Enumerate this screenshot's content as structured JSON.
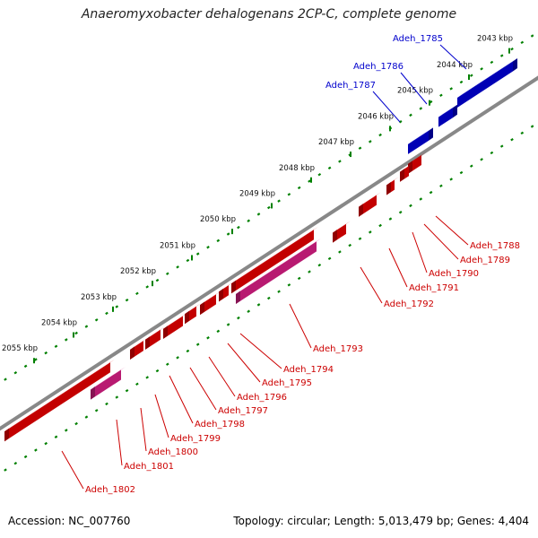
{
  "title": "Anaeromyxobacter dehalogenans 2CP-C, complete genome",
  "footer": {
    "accession": "Accession: NC_007760",
    "stats": "Topology: circular; Length: 5,013,479 bp; Genes: 4,404"
  },
  "colors": {
    "backbone": "#888888",
    "tick": "#008000",
    "forward_gene": "#0000dd",
    "reverse_gene": "#ee0000",
    "rna_gene": "#e0208a",
    "forward_label": "#0000cc",
    "reverse_label": "#cc0000"
  },
  "ticks": [
    "2043 kbp",
    "2044 kbp",
    "2045 kbp",
    "2046 kbp",
    "2047 kbp",
    "2048 kbp",
    "2049 kbp",
    "2050 kbp",
    "2051 kbp",
    "2052 kbp",
    "2053 kbp",
    "2054 kbp",
    "2055 kbp"
  ],
  "genes": [
    {
      "name": "Adeh_1785",
      "strand": "forward",
      "type": "cds"
    },
    {
      "name": "Adeh_1786",
      "strand": "forward",
      "type": "cds"
    },
    {
      "name": "Adeh_1787",
      "strand": "forward",
      "type": "cds"
    },
    {
      "name": "Adeh_1788",
      "strand": "reverse",
      "type": "cds"
    },
    {
      "name": "Adeh_1789",
      "strand": "reverse",
      "type": "cds"
    },
    {
      "name": "Adeh_1790",
      "strand": "reverse",
      "type": "cds"
    },
    {
      "name": "Adeh_1791",
      "strand": "reverse",
      "type": "cds"
    },
    {
      "name": "Adeh_1792",
      "strand": "reverse",
      "type": "cds"
    },
    {
      "name": "Adeh_1793",
      "strand": "reverse",
      "type": "rna"
    },
    {
      "name": "Adeh_1794",
      "strand": "reverse",
      "type": "cds"
    },
    {
      "name": "Adeh_1795",
      "strand": "reverse",
      "type": "cds"
    },
    {
      "name": "Adeh_1796",
      "strand": "reverse",
      "type": "cds"
    },
    {
      "name": "Adeh_1797",
      "strand": "reverse",
      "type": "cds"
    },
    {
      "name": "Adeh_1798",
      "strand": "reverse",
      "type": "cds"
    },
    {
      "name": "Adeh_1799",
      "strand": "reverse",
      "type": "cds"
    },
    {
      "name": "Adeh_1800",
      "strand": "reverse",
      "type": "cds"
    },
    {
      "name": "Adeh_1801",
      "strand": "reverse",
      "type": "rna"
    },
    {
      "name": "Adeh_1802",
      "strand": "reverse",
      "type": "cds"
    }
  ]
}
